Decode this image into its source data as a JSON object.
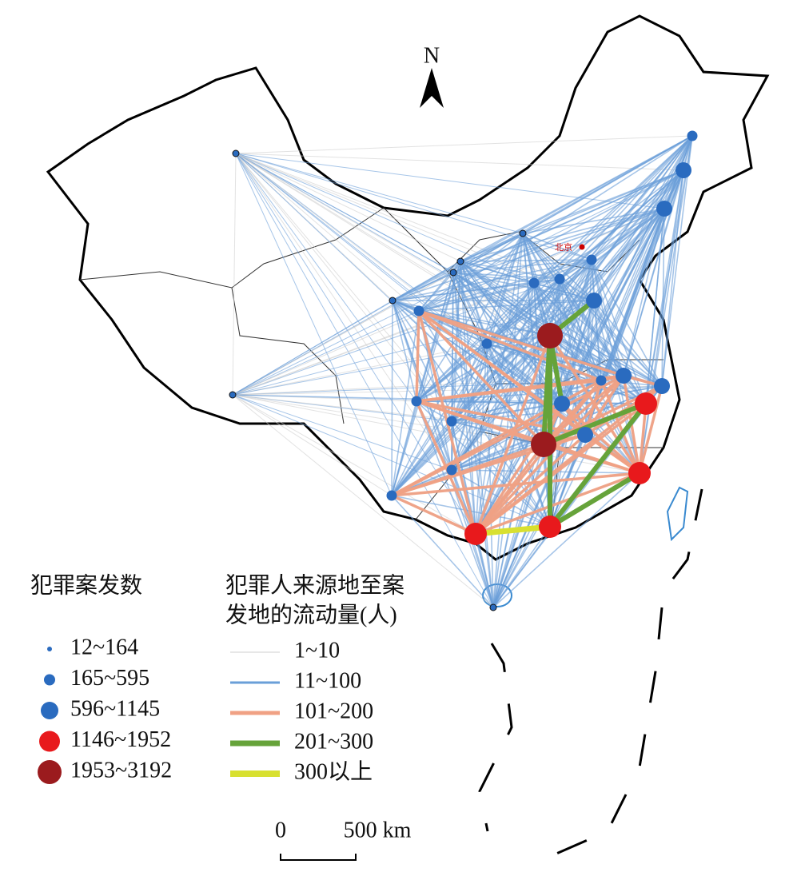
{
  "map": {
    "north_arrow": "N",
    "capital_label": "北京",
    "legend_cases": {
      "title": "犯罪案发数",
      "items": [
        "12~164",
        "165~595",
        "596~1145",
        "1146~1952",
        "1953~3192"
      ]
    },
    "legend_flow": {
      "title_lines": [
        "犯罪人来源地至案",
        "发地的流动量(人)"
      ],
      "items": [
        "1~10",
        "11~100",
        "101~200",
        "201~300",
        "300以上"
      ]
    },
    "scale_bar": {
      "start": "0",
      "end": "500 km"
    }
  }
}
